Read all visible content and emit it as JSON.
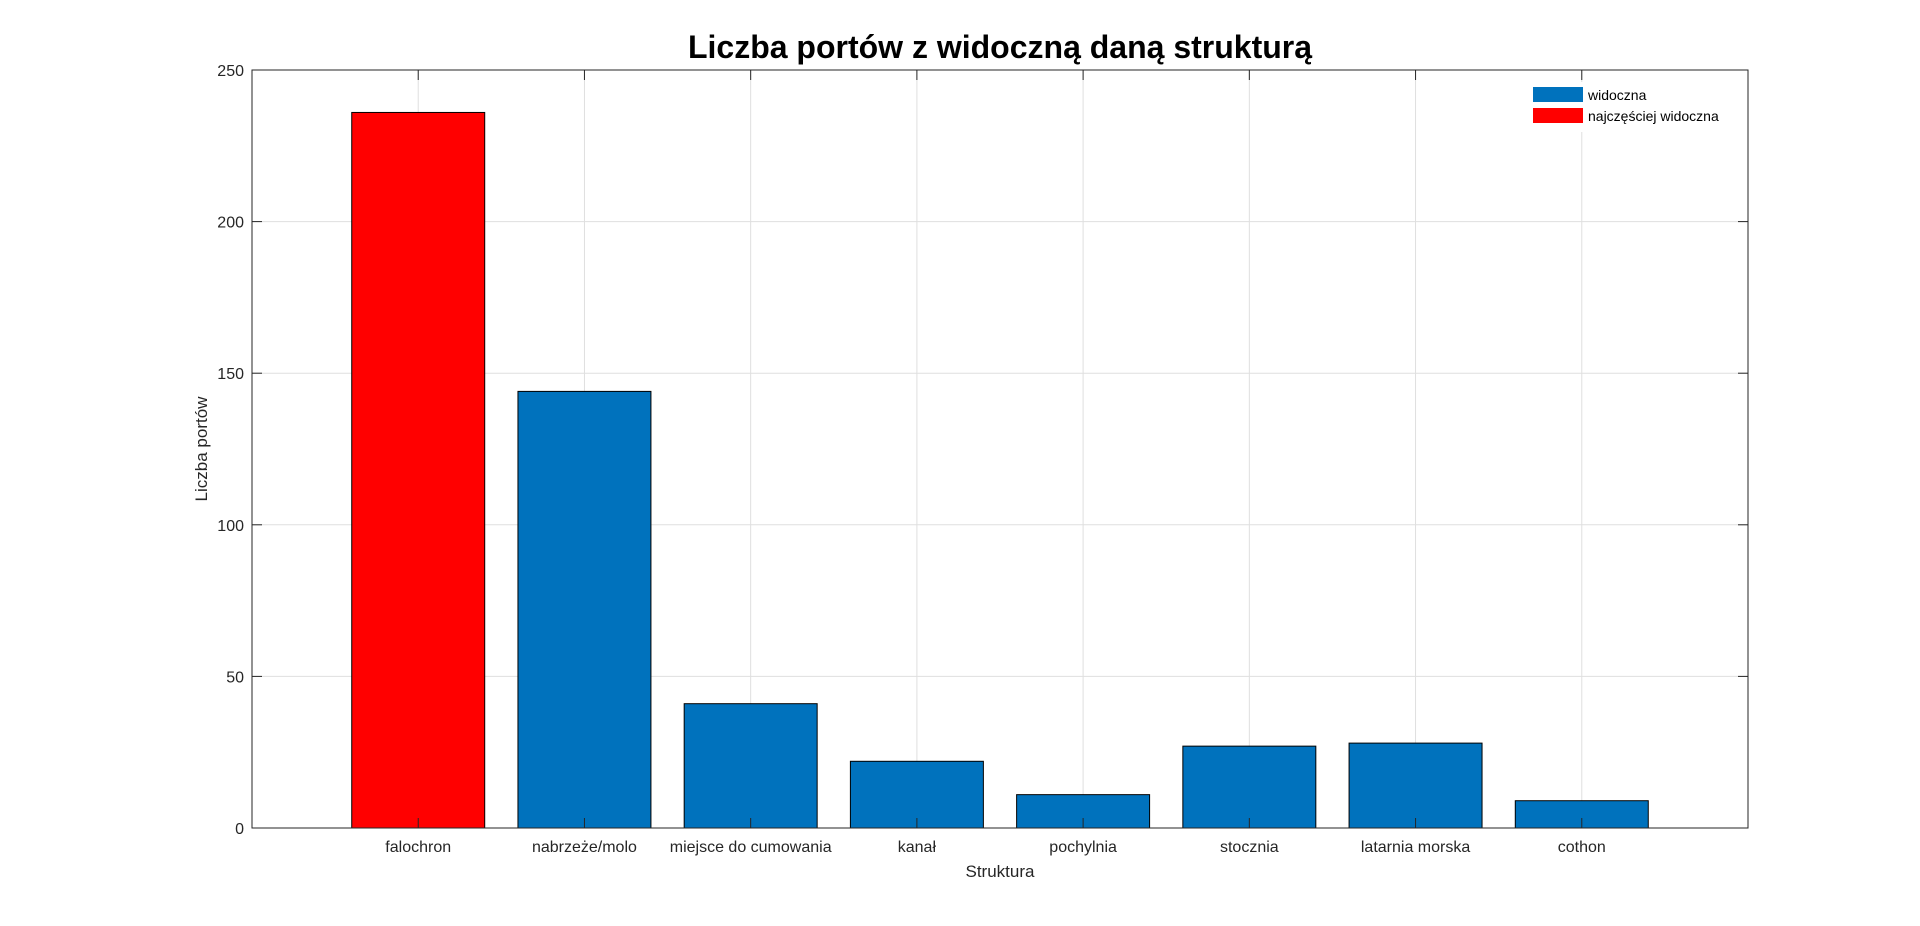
{
  "chart_data": {
    "type": "bar",
    "title": "Liczba portów z widoczną daną strukturą",
    "xlabel": "Struktura",
    "ylabel": "Liczba portów",
    "categories": [
      "falochron",
      "nabrzeże/molo",
      "miejsce do cumowania",
      "kanał",
      "pochylnia",
      "stocznia",
      "latarnia morska",
      "cothon"
    ],
    "values": [
      236,
      144,
      41,
      22,
      11,
      27,
      28,
      9
    ],
    "highlight_index": 0,
    "ylim": [
      0,
      250
    ],
    "yticks": [
      0,
      50,
      100,
      150,
      200,
      250
    ],
    "grid": true,
    "legend": {
      "placement": "top-right",
      "entries": [
        {
          "label": "widoczna",
          "color": "#0072BD"
        },
        {
          "label": "najczęściej widoczna",
          "color": "#FF0000"
        }
      ]
    },
    "colors": {
      "bar": "#0072BD",
      "highlight": "#FF0000"
    }
  }
}
